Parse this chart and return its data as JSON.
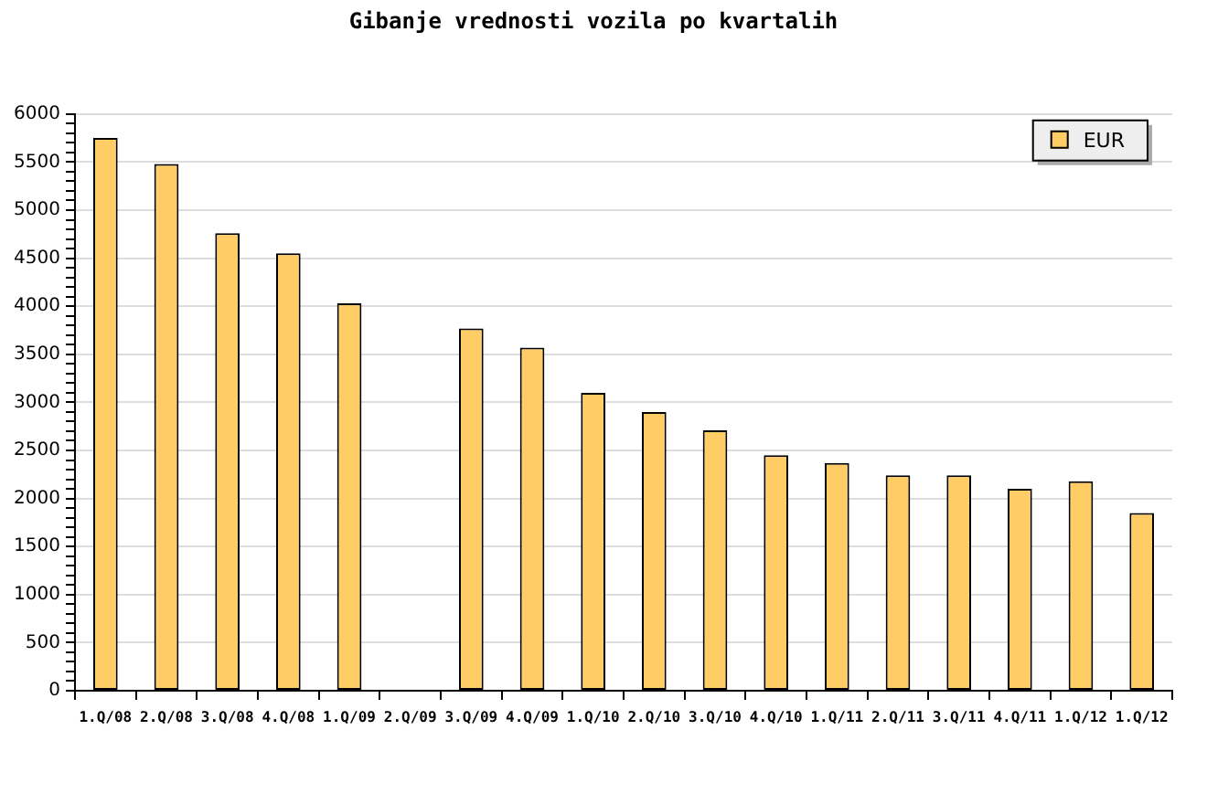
{
  "chart_data": {
    "type": "bar",
    "title": "Gibanje vrednosti vozila po kvartalih",
    "categories": [
      "1.Q/08",
      "2.Q/08",
      "3.Q/08",
      "4.Q/08",
      "1.Q/09",
      "2.Q/09",
      "3.Q/09",
      "4.Q/09",
      "1.Q/10",
      "2.Q/10",
      "3.Q/10",
      "4.Q/10",
      "1.Q/11",
      "2.Q/11",
      "3.Q/11",
      "4.Q/11",
      "1.Q/12",
      "1.Q/12"
    ],
    "series": [
      {
        "name": "EUR",
        "color": "#ffcc66",
        "values": [
          5750,
          5480,
          4760,
          4550,
          4030,
          null,
          3770,
          3570,
          3100,
          2900,
          2710,
          2450,
          2370,
          2240,
          2240,
          2100,
          2180,
          1850
        ]
      }
    ],
    "ylim": [
      0,
      6000
    ],
    "yticks": [
      0,
      {
        "value": 100,
        "label": null
      },
      {
        "value": 200,
        "label": null
      },
      {
        "value": 300,
        "label": null
      },
      {
        "value": 400,
        "label": null
      },
      500,
      {
        "value": 600,
        "label": null
      },
      {
        "value": 700,
        "label": null
      },
      {
        "value": 800,
        "label": null
      },
      {
        "value": 900,
        "label": null
      },
      1000,
      {
        "value": 1100,
        "label": null
      },
      {
        "value": 1200,
        "label": null
      },
      {
        "value": 1300,
        "label": null
      },
      {
        "value": 1400,
        "label": null
      },
      1500,
      {
        "value": 1600,
        "label": null
      },
      {
        "value": 1700,
        "label": null
      },
      {
        "value": 1800,
        "label": null
      },
      {
        "value": 1900,
        "label": null
      },
      2000,
      {
        "value": 2100,
        "label": null
      },
      {
        "value": 2200,
        "label": null
      },
      {
        "value": 2300,
        "label": null
      },
      {
        "value": 2400,
        "label": null
      },
      2500,
      {
        "value": 2600,
        "label": null
      },
      {
        "value": 2700,
        "label": null
      },
      {
        "value": 2800,
        "label": null
      },
      {
        "value": 2900,
        "label": null
      },
      3000,
      {
        "value": 3100,
        "label": null
      },
      {
        "value": 3200,
        "label": null
      },
      {
        "value": 3300,
        "label": null
      },
      {
        "value": 3400,
        "label": null
      },
      3500,
      {
        "value": 3600,
        "label": null
      },
      {
        "value": 3700,
        "label": null
      },
      {
        "value": 3800,
        "label": null
      },
      {
        "value": 3900,
        "label": null
      },
      4000,
      {
        "value": 4100,
        "label": null
      },
      {
        "value": 4200,
        "label": null
      },
      {
        "value": 4300,
        "label": null
      },
      {
        "value": 4400,
        "label": null
      },
      4500,
      {
        "value": 4600,
        "label": null
      },
      {
        "value": 4700,
        "label": null
      },
      {
        "value": 4800,
        "label": null
      },
      {
        "value": 4900,
        "label": null
      },
      5000,
      {
        "value": 5100,
        "label": null
      },
      {
        "value": 5200,
        "label": null
      },
      {
        "value": 5300,
        "label": null
      },
      {
        "value": 5400,
        "label": null
      },
      5500,
      {
        "value": 5600,
        "label": null
      },
      {
        "value": 5700,
        "label": null
      },
      {
        "value": 5800,
        "label": null
      },
      {
        "value": 5900,
        "label": null
      },
      6000
    ],
    "grid": "y",
    "legend": "top right"
  }
}
